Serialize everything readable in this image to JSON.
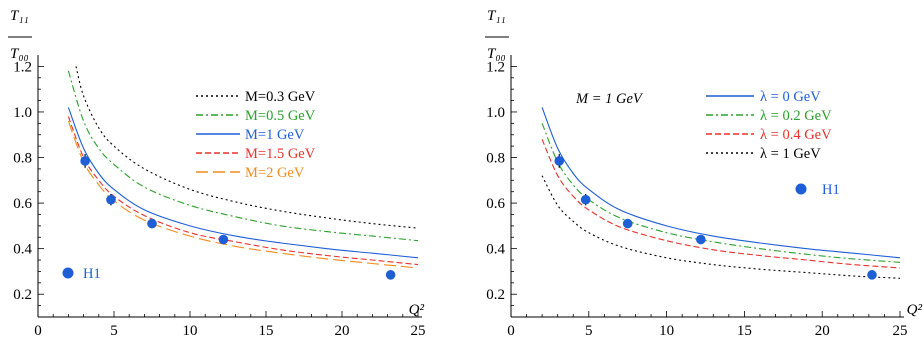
{
  "chart_data": [
    {
      "type": "line",
      "ylabel": {
        "numerator": "T₁₁",
        "denominator": "T₀₀"
      },
      "xlabel": "Q²",
      "xlim": [
        0,
        25
      ],
      "ylim": [
        0.1,
        1.25
      ],
      "xticks": [
        "0",
        "5",
        "10",
        "15",
        "20",
        "25"
      ],
      "yticks": [
        "0.2",
        "0.4",
        "0.6",
        "0.8",
        "1.0",
        "1.2"
      ],
      "legend_position": "top-right",
      "annotation": "",
      "series": [
        {
          "name": "M=0.3 GeV",
          "color": "#000000",
          "dash": "dotted",
          "x": [
            2.5,
            3,
            4,
            5,
            7,
            10,
            13,
            16,
            19,
            22,
            25
          ],
          "y": [
            1.2,
            1.07,
            0.93,
            0.85,
            0.75,
            0.66,
            0.605,
            0.565,
            0.535,
            0.51,
            0.49
          ]
        },
        {
          "name": "M=0.5 GeV",
          "color": "#2ca02c",
          "dash": "dashdot",
          "x": [
            2,
            3,
            4,
            5,
            7,
            10,
            13,
            16,
            19,
            22,
            25
          ],
          "y": [
            1.18,
            0.96,
            0.84,
            0.77,
            0.67,
            0.59,
            0.54,
            0.5,
            0.475,
            0.455,
            0.435
          ]
        },
        {
          "name": "M=1 GeV",
          "color": "#1f5fd6",
          "dash": "solid",
          "x": [
            2,
            3,
            4,
            5,
            7,
            10,
            13,
            16,
            19,
            22,
            25
          ],
          "y": [
            1.02,
            0.84,
            0.73,
            0.66,
            0.57,
            0.5,
            0.455,
            0.425,
            0.4,
            0.38,
            0.36
          ]
        },
        {
          "name": "M=1.5 GeV",
          "color": "#e8322c",
          "dash": "dashed",
          "x": [
            2,
            3,
            4,
            5,
            7,
            10,
            13,
            16,
            19,
            22,
            25
          ],
          "y": [
            0.98,
            0.8,
            0.7,
            0.63,
            0.545,
            0.47,
            0.43,
            0.395,
            0.37,
            0.35,
            0.33
          ]
        },
        {
          "name": "M=2 GeV",
          "color": "#f08c1e",
          "dash": "longdash",
          "x": [
            2,
            3,
            4,
            5,
            7,
            10,
            13,
            16,
            19,
            22,
            25
          ],
          "y": [
            0.96,
            0.78,
            0.68,
            0.61,
            0.525,
            0.455,
            0.41,
            0.38,
            0.355,
            0.335,
            0.315
          ]
        }
      ],
      "points": {
        "name": "H1",
        "color": "#1f5fd6",
        "x": [
          3.1,
          4.8,
          7.5,
          12.2,
          23.2
        ],
        "y": [
          0.785,
          0.615,
          0.51,
          0.44,
          0.285
        ],
        "yerr": [
          0.03,
          0.025,
          0.02,
          0.02,
          0.02
        ]
      },
      "point_legend_position": "bottom-left"
    },
    {
      "type": "line",
      "ylabel": {
        "numerator": "T₁₁",
        "denominator": "T₀₀"
      },
      "xlabel": "Q²",
      "xlim": [
        0,
        25
      ],
      "ylim": [
        0.1,
        1.25
      ],
      "xticks": [
        "0",
        "5",
        "10",
        "15",
        "20",
        "25"
      ],
      "yticks": [
        "0.2",
        "0.4",
        "0.6",
        "0.8",
        "1.0",
        "1.2"
      ],
      "legend_position": "top-right",
      "annotation": "M = 1 GeV",
      "series": [
        {
          "name": "λ = 0 GeV",
          "color": "#1f5fd6",
          "dash": "solid",
          "x": [
            2,
            3,
            4,
            5,
            7,
            10,
            13,
            16,
            19,
            22,
            25
          ],
          "y": [
            1.02,
            0.84,
            0.73,
            0.66,
            0.57,
            0.5,
            0.455,
            0.425,
            0.4,
            0.38,
            0.36
          ]
        },
        {
          "name": "λ = 0.2 GeV",
          "color": "#2ca02c",
          "dash": "dashdot",
          "x": [
            2,
            3,
            4,
            5,
            7,
            10,
            13,
            16,
            19,
            22,
            25
          ],
          "y": [
            0.95,
            0.78,
            0.68,
            0.615,
            0.535,
            0.47,
            0.43,
            0.4,
            0.375,
            0.355,
            0.34
          ]
        },
        {
          "name": "λ = 0.4 GeV",
          "color": "#e8322c",
          "dash": "dashed",
          "x": [
            2,
            3,
            4,
            5,
            7,
            10,
            13,
            16,
            19,
            22,
            25
          ],
          "y": [
            0.88,
            0.72,
            0.63,
            0.57,
            0.495,
            0.435,
            0.395,
            0.37,
            0.35,
            0.33,
            0.315
          ]
        },
        {
          "name": "λ = 1 GeV",
          "color": "#000000",
          "dash": "dotted",
          "x": [
            2,
            3,
            4,
            5,
            7,
            10,
            13,
            16,
            19,
            22,
            25
          ],
          "y": [
            0.72,
            0.59,
            0.52,
            0.47,
            0.41,
            0.36,
            0.33,
            0.31,
            0.295,
            0.28,
            0.27
          ]
        }
      ],
      "points": {
        "name": "H1",
        "color": "#1f5fd6",
        "x": [
          3.1,
          4.8,
          7.5,
          12.2,
          23.2
        ],
        "y": [
          0.785,
          0.615,
          0.51,
          0.44,
          0.285
        ],
        "yerr": [
          0.03,
          0.025,
          0.02,
          0.02,
          0.02
        ]
      },
      "point_legend_position": "right"
    }
  ]
}
